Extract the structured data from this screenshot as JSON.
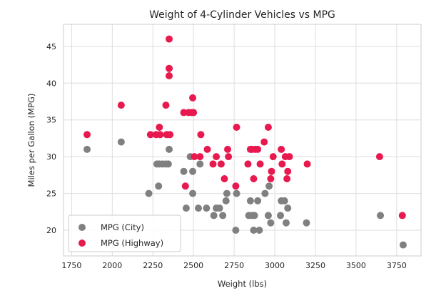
{
  "chart_data": {
    "type": "scatter",
    "title": "Weight of 4-Cylinder Vehicles vs MPG",
    "xlabel": "Weight (lbs)",
    "ylabel": "Miles per Gallon (MPG)",
    "xlim": [
      1700,
      3900
    ],
    "ylim": [
      16.5,
      48
    ],
    "x_ticks": [
      1750,
      2000,
      2250,
      2500,
      2750,
      3000,
      3250,
      3500,
      3750
    ],
    "y_ticks": [
      20,
      25,
      30,
      35,
      40,
      45
    ],
    "grid": true,
    "legend_position": "lower-left",
    "series": [
      {
        "name": "MPG (City)",
        "color": "#808080",
        "points": [
          [
            1845,
            31
          ],
          [
            2055,
            32
          ],
          [
            2225,
            25
          ],
          [
            2275,
            29
          ],
          [
            2285,
            26
          ],
          [
            2290,
            29
          ],
          [
            2310,
            29
          ],
          [
            2330,
            29
          ],
          [
            2345,
            29
          ],
          [
            2350,
            42
          ],
          [
            2350,
            31
          ],
          [
            2440,
            28
          ],
          [
            2455,
            23
          ],
          [
            2480,
            30
          ],
          [
            2495,
            28
          ],
          [
            2495,
            25
          ],
          [
            2530,
            23
          ],
          [
            2540,
            29
          ],
          [
            2580,
            23
          ],
          [
            2625,
            22
          ],
          [
            2640,
            23
          ],
          [
            2660,
            23
          ],
          [
            2680,
            22
          ],
          [
            2700,
            24
          ],
          [
            2705,
            25
          ],
          [
            2760,
            20
          ],
          [
            2765,
            25
          ],
          [
            2840,
            22
          ],
          [
            2850,
            24
          ],
          [
            2860,
            22
          ],
          [
            2870,
            20
          ],
          [
            2875,
            22
          ],
          [
            2895,
            24
          ],
          [
            2905,
            20
          ],
          [
            2940,
            25
          ],
          [
            2960,
            22
          ],
          [
            2965,
            26
          ],
          [
            2975,
            21
          ],
          [
            3035,
            22
          ],
          [
            3040,
            24
          ],
          [
            3060,
            24
          ],
          [
            3070,
            21
          ],
          [
            3080,
            23
          ],
          [
            3195,
            21
          ],
          [
            3650,
            22
          ],
          [
            3790,
            18
          ]
        ]
      },
      {
        "name": "MPG (Highway)",
        "color": "#e8194f",
        "points": [
          [
            1845,
            33
          ],
          [
            2055,
            37
          ],
          [
            2235,
            33
          ],
          [
            2270,
            33
          ],
          [
            2290,
            34
          ],
          [
            2295,
            33
          ],
          [
            2330,
            37
          ],
          [
            2335,
            33
          ],
          [
            2350,
            46
          ],
          [
            2350,
            42
          ],
          [
            2350,
            41
          ],
          [
            2355,
            33
          ],
          [
            2440,
            36
          ],
          [
            2450,
            26
          ],
          [
            2470,
            36
          ],
          [
            2490,
            36
          ],
          [
            2495,
            38
          ],
          [
            2500,
            36
          ],
          [
            2505,
            30
          ],
          [
            2540,
            30
          ],
          [
            2545,
            33
          ],
          [
            2585,
            31
          ],
          [
            2620,
            29
          ],
          [
            2640,
            30
          ],
          [
            2670,
            29
          ],
          [
            2690,
            27
          ],
          [
            2710,
            31
          ],
          [
            2715,
            30
          ],
          [
            2760,
            26
          ],
          [
            2765,
            34
          ],
          [
            2835,
            29
          ],
          [
            2850,
            31
          ],
          [
            2860,
            31
          ],
          [
            2870,
            27
          ],
          [
            2880,
            31
          ],
          [
            2895,
            31
          ],
          [
            2910,
            29
          ],
          [
            2935,
            32
          ],
          [
            2960,
            34
          ],
          [
            2975,
            27
          ],
          [
            2980,
            28
          ],
          [
            2990,
            30
          ],
          [
            3040,
            31
          ],
          [
            3045,
            29
          ],
          [
            3065,
            30
          ],
          [
            3075,
            27
          ],
          [
            3080,
            28
          ],
          [
            3090,
            30
          ],
          [
            3200,
            29
          ],
          [
            3645,
            30
          ],
          [
            3785,
            22
          ]
        ]
      }
    ]
  }
}
